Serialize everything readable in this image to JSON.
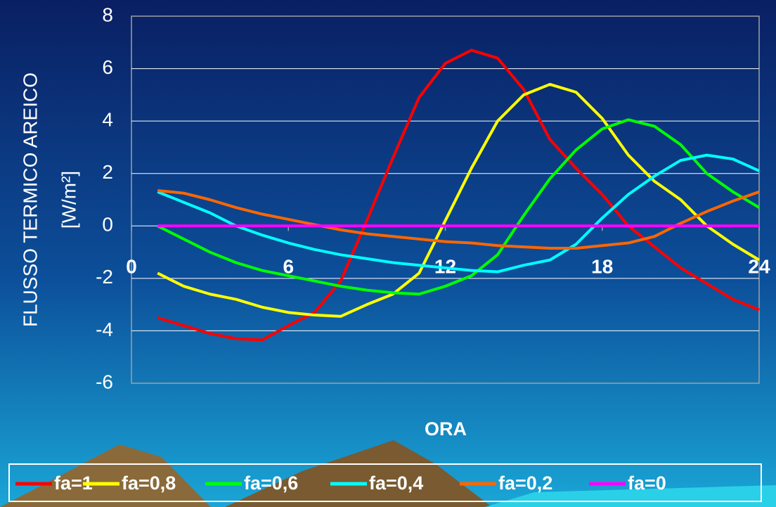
{
  "chart_data": {
    "type": "line",
    "x_label": "ORA",
    "y_label": "FLUSSO TERMICO AREICO",
    "y_unit": "[W/m²]",
    "x": [
      1,
      2,
      3,
      4,
      5,
      6,
      7,
      8,
      9,
      10,
      11,
      12,
      13,
      14,
      15,
      16,
      17,
      18,
      19,
      20,
      21,
      22,
      23,
      24
    ],
    "xlim": [
      0,
      24
    ],
    "xticks": [
      0,
      6,
      12,
      18,
      24
    ],
    "ylim": [
      -6,
      8
    ],
    "yticks": [
      -6,
      -4,
      -2,
      0,
      2,
      4,
      6,
      8
    ],
    "grid": true,
    "legend": "bottom",
    "series": [
      {
        "name": "fa=1",
        "color": "#ff0000",
        "values": [
          -3.5,
          -3.8,
          -4.1,
          -4.3,
          -4.35,
          -3.8,
          -3.3,
          -2.1,
          0.2,
          2.6,
          4.9,
          6.2,
          6.7,
          6.4,
          5.2,
          3.3,
          2.2,
          1.2,
          0,
          -0.8,
          -1.6,
          -2.2,
          -2.8,
          -3.2
        ]
      },
      {
        "name": "fa=0,8",
        "color": "#ffff00",
        "values": [
          -1.8,
          -2.3,
          -2.6,
          -2.8,
          -3.1,
          -3.3,
          -3.4,
          -3.45,
          -3.0,
          -2.6,
          -1.8,
          0.2,
          2.2,
          4.0,
          5.0,
          5.4,
          5.1,
          4.1,
          2.7,
          1.7,
          1.0,
          0,
          -0.7,
          -1.3
        ]
      },
      {
        "name": "fa=0,6",
        "color": "#00ff00",
        "values": [
          0,
          -0.5,
          -1.0,
          -1.4,
          -1.7,
          -1.9,
          -2.1,
          -2.3,
          -2.45,
          -2.55,
          -2.6,
          -2.3,
          -1.9,
          -1.1,
          0.4,
          1.8,
          2.9,
          3.7,
          4.05,
          3.8,
          3.1,
          2.0,
          1.3,
          0.7
        ]
      },
      {
        "name": "fa=0,4",
        "color": "#00ffff",
        "values": [
          1.3,
          0.9,
          0.5,
          0,
          -0.35,
          -0.65,
          -0.9,
          -1.1,
          -1.25,
          -1.4,
          -1.5,
          -1.6,
          -1.7,
          -1.75,
          -1.5,
          -1.3,
          -0.7,
          0.3,
          1.2,
          1.9,
          2.5,
          2.7,
          2.55,
          2.1
        ]
      },
      {
        "name": "fa=0,2",
        "color": "#ff6600",
        "values": [
          1.35,
          1.25,
          1.0,
          0.7,
          0.45,
          0.25,
          0.05,
          -0.15,
          -0.3,
          -0.4,
          -0.5,
          -0.6,
          -0.65,
          -0.75,
          -0.8,
          -0.85,
          -0.85,
          -0.75,
          -0.65,
          -0.4,
          0.1,
          0.55,
          0.95,
          1.3
        ]
      },
      {
        "name": "fa=0",
        "color": "#ff00ff",
        "values": [
          0,
          0,
          0,
          0,
          0,
          0,
          0,
          0,
          0,
          0,
          0,
          0,
          0,
          0,
          0,
          0,
          0,
          0,
          0,
          0,
          0,
          0,
          0,
          0
        ]
      }
    ]
  }
}
